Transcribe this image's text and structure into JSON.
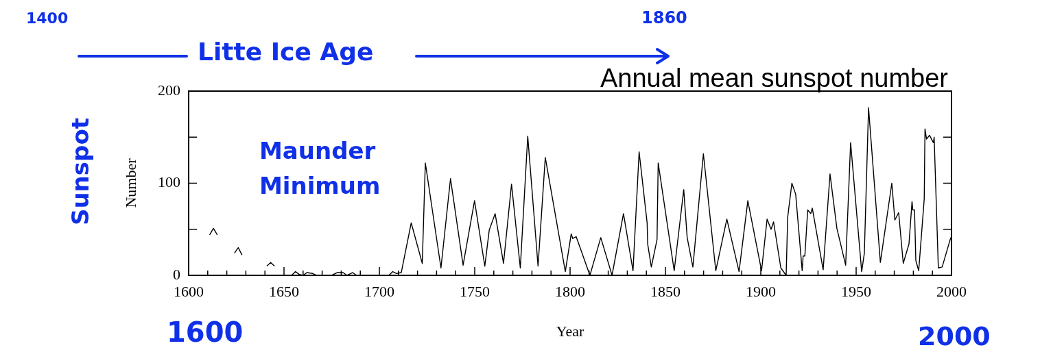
{
  "chart_data": {
    "type": "line",
    "title": "Annual mean sunspot number",
    "xlabel": "Year",
    "ylabel": "Number",
    "annotations": [
      "1400",
      "1860",
      "Litte Ice Age",
      "Sunspot",
      "Maunder Minimum",
      "1600",
      "2000"
    ],
    "series": [
      {
        "color": "#000000",
        "x": [
          1611,
          1613,
          1615,
          1619,
          1624,
          1626,
          1628,
          1634,
          1641,
          1643,
          1645,
          1650,
          1654,
          1656,
          1658,
          1660,
          1662,
          1665,
          1667,
          1671,
          1675,
          1678,
          1681,
          1683,
          1686,
          1688,
          1698,
          1705,
          1707,
          1709,
          1711.5,
          1716.7,
          1722.5,
          1724.1,
          1732.3,
          1737.3,
          1743.9,
          1749.9,
          1755.3,
          1757.6,
          1760.7,
          1765.1,
          1769.3,
          1773.9,
          1777.8,
          1783.2,
          1787,
          1797.5,
          1800.6,
          1801.4,
          1803.2,
          1810.4,
          1816.1,
          1822,
          1828,
          1833,
          1836.2,
          1840.4,
          1840.7,
          1842.6,
          1845.6,
          1846.2,
          1854.6,
          1859.6,
          1861.4,
          1864.4,
          1869.9,
          1876.4,
          1882.2,
          1888.6,
          1893.2,
          1900.4,
          1903.3,
          1905.4,
          1906.7,
          1910.5,
          1913.3,
          1914.1,
          1916.3,
          1918.3,
          1921.7,
          1922.2,
          1923.1,
          1924.6,
          1926.2,
          1927,
          1932.7,
          1936.3,
          1939.9,
          1944.5,
          1947.1,
          1952.9,
          1954.3,
          1956.5,
          1962.7,
          1968.7,
          1970.3,
          1972.3,
          1974.7,
          1977.7,
          1979.3,
          1979.7,
          1980.6,
          1981.3,
          1982.8,
          1985.7,
          1986.1,
          1986.9,
          1988.5,
          1990.5,
          1990.9,
          1993.1,
          1995.1,
          1999.6
        ],
        "values": [
          44,
          51,
          44,
          null,
          24,
          30,
          22,
          null,
          10,
          14,
          10,
          null,
          0,
          4,
          1,
          0,
          3,
          2,
          0,
          null,
          0,
          3,
          3,
          0,
          3,
          0,
          null,
          0,
          4,
          2,
          3,
          57,
          13,
          122,
          8,
          105,
          11,
          81,
          10,
          49,
          67,
          13,
          99,
          8,
          151,
          10,
          128,
          4,
          45,
          40,
          42,
          0,
          41,
          0,
          67,
          5,
          134,
          57,
          34,
          9,
          39,
          122,
          5,
          93,
          41,
          9,
          132,
          5,
          61,
          4,
          81,
          5,
          61,
          50,
          58,
          8,
          0,
          63,
          100,
          88,
          5,
          21,
          21,
          71,
          67,
          73,
          6,
          110,
          51,
          11,
          144,
          4,
          24,
          182,
          14,
          100,
          60,
          68,
          13,
          34,
          80,
          71,
          71,
          16,
          5,
          83,
          159,
          148,
          152,
          144,
          150,
          8,
          9,
          41
        ]
      }
    ],
    "xlim": [
      1600,
      2000
    ],
    "xticks": [
      1600,
      {
        "value": 1610,
        "label": null
      },
      {
        "value": 1620,
        "label": null
      },
      {
        "value": 1630,
        "label": null
      },
      {
        "value": 1640,
        "label": null
      },
      1650,
      {
        "value": 1660,
        "label": null
      },
      {
        "value": 1670,
        "label": null
      },
      {
        "value": 1680,
        "label": null
      },
      {
        "value": 1690,
        "label": null
      },
      1700,
      {
        "value": 1710,
        "label": null
      },
      {
        "value": 1720,
        "label": null
      },
      {
        "value": 1730,
        "label": null
      },
      {
        "value": 1740,
        "label": null
      },
      1750,
      {
        "value": 1760,
        "label": null
      },
      {
        "value": 1770,
        "label": null
      },
      {
        "value": 1780,
        "label": null
      },
      {
        "value": 1790,
        "label": null
      },
      1800,
      {
        "value": 1810,
        "label": null
      },
      {
        "value": 1820,
        "label": null
      },
      {
        "value": 1830,
        "label": null
      },
      {
        "value": 1840,
        "label": null
      },
      1850,
      {
        "value": 1860,
        "label": null
      },
      {
        "value": 1870,
        "label": null
      },
      {
        "value": 1880,
        "label": null
      },
      {
        "value": 1890,
        "label": null
      },
      1900,
      {
        "value": 1910,
        "label": null
      },
      {
        "value": 1920,
        "label": null
      },
      {
        "value": 1930,
        "label": null
      },
      {
        "value": 1940,
        "label": null
      },
      1950,
      {
        "value": 1960,
        "label": null
      },
      {
        "value": 1970,
        "label": null
      },
      {
        "value": 1980,
        "label": null
      },
      {
        "value": 1990,
        "label": null
      },
      2000
    ],
    "ylim": [
      0,
      200
    ],
    "yticks": [
      0,
      {
        "value": 50,
        "label": null
      },
      100,
      {
        "value": 150,
        "label": null
      },
      200
    ],
    "line_style": "solid",
    "grid": false,
    "legend": false
  }
}
